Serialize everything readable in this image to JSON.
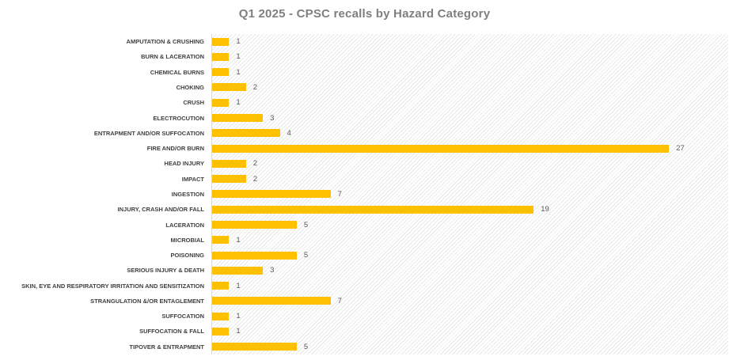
{
  "title": "Q1 2025 - CPSC recalls by Hazard Category",
  "chart_data": {
    "type": "bar",
    "orientation": "horizontal",
    "title": "Q1 2025 - CPSC recalls by Hazard Category",
    "categories": [
      "AMPUTATION & CRUSHING",
      "BURN & LACERATION",
      "CHEMICAL BURNS",
      "CHOKING",
      "CRUSH",
      "ELECTROCUTION",
      "ENTRAPMENT AND/OR SUFFOCATION",
      "FIRE AND/OR BURN",
      "HEAD INJURY",
      "IMPACT",
      "INGESTION",
      "INJURY, CRASH AND/OR FALL",
      "LACERATION",
      "MICROBIAL",
      "POISONING",
      "SERIOUS INJURY & DEATH",
      "SKIN, EYE AND RESPIRATORY IRRITATION AND SENSITIZATION",
      "STRANGULATION &/OR ENTAGLEMENT",
      "SUFFOCATION",
      "SUFFOCATION & FALL",
      "TIPOVER & ENTRAPMENT"
    ],
    "values": [
      1,
      1,
      1,
      2,
      1,
      3,
      4,
      27,
      2,
      2,
      7,
      19,
      5,
      1,
      5,
      3,
      1,
      7,
      1,
      1,
      5
    ],
    "xlim": [
      0,
      30.5
    ],
    "data_labels": true,
    "grid": false,
    "legend": false,
    "bar_color": "#FFC000",
    "category_label_color": "#404040",
    "value_label_color": "#595959",
    "title_color": "#7F7F7F",
    "axis_line_color": "#D9D9D9"
  }
}
